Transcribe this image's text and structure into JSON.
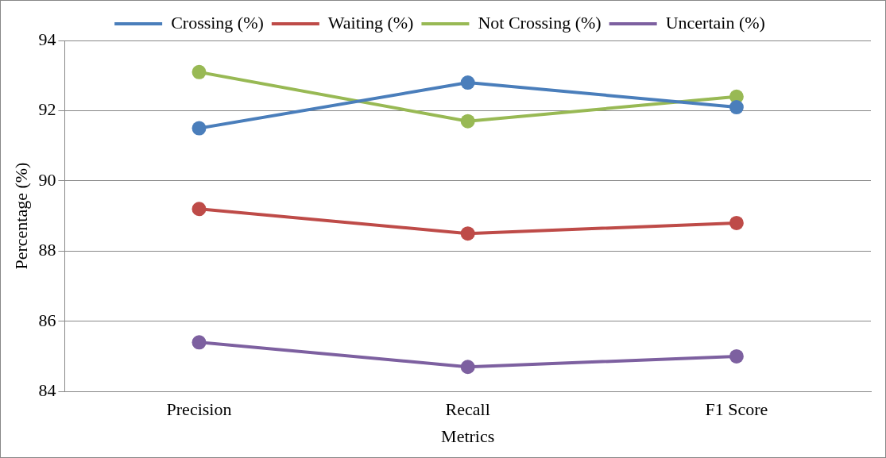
{
  "chart_data": {
    "type": "line",
    "xlabel": "Metrics",
    "ylabel": "Percentage (%)",
    "categories": [
      "Precision",
      "Recall",
      "F1 Score"
    ],
    "series": [
      {
        "name": "Crossing (%)",
        "color": "#4a7ebb",
        "values": [
          91.5,
          92.8,
          92.1
        ]
      },
      {
        "name": "Waiting (%)",
        "color": "#be4b48",
        "values": [
          89.2,
          88.5,
          88.8
        ]
      },
      {
        "name": "Not Crossing (%)",
        "color": "#98b954",
        "values": [
          93.1,
          91.7,
          92.4
        ]
      },
      {
        "name": "Uncertain (%)",
        "color": "#7d60a0",
        "values": [
          85.4,
          84.7,
          85.0
        ]
      }
    ],
    "ylim": [
      84,
      94
    ],
    "yticks": [
      84,
      86,
      88,
      90,
      92,
      94
    ],
    "grid": "y",
    "legend": "top",
    "marker": "circle",
    "line_style": "solid"
  }
}
